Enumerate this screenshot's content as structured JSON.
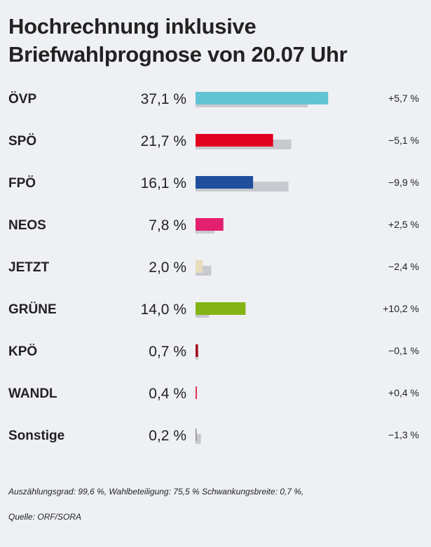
{
  "title_line1": "Hochrechnung inklusive",
  "title_line2": "Briefwahlprognose von 20.07 Uhr",
  "footer": {
    "line1": "Auszählungsgrad: 99,6 %, Wahlbeteiligung: 75,5 % Schwankungsbreite: 0,7 %,",
    "line2": "Quelle: ORF/SORA"
  },
  "colors": {
    "previous": "#c7c9ce",
    "background": "#eef0f4"
  },
  "chart_data": {
    "type": "bar",
    "orientation": "horizontal",
    "categories": [
      "ÖVP",
      "SPÖ",
      "FPÖ",
      "NEOS",
      "JETZT",
      "GRÜNE",
      "KPÖ",
      "WANDL",
      "Sonstige"
    ],
    "values": [
      37.1,
      21.7,
      16.1,
      7.8,
      2.0,
      14.0,
      0.7,
      0.4,
      0.2
    ],
    "value_labels": [
      "37,1 %",
      "21,7 %",
      "16,1 %",
      "7,8 %",
      "2,0 %",
      "14,0 %",
      "0,7 %",
      "0,4 %",
      "0,2 %"
    ],
    "previous_values": [
      31.4,
      26.8,
      26.0,
      5.3,
      4.4,
      3.8,
      0.8,
      0.0,
      1.5
    ],
    "change_labels": [
      "+5,7 %",
      "−5,1 %",
      "−9,9 %",
      "+2,5 %",
      "−2,4 %",
      "+10,2 %",
      "−0,1 %",
      "+0,4 %",
      "−1,3 %"
    ],
    "series_colors": [
      "#62c3d3",
      "#e3001f",
      "#1f4f9c",
      "#e2206f",
      "#e8dcbc",
      "#84b414",
      "#a00f1b",
      "#e3354f",
      "#8c8c8c"
    ]
  }
}
